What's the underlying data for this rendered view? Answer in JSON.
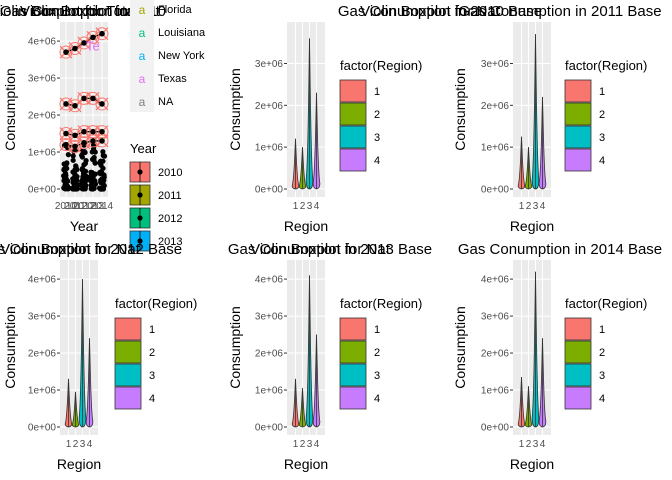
{
  "chart_data": [
    {
      "type": "scatter",
      "title": "Gas Conumption in 2010",
      "overlapping_titles": [
        "Violin Boxplot for Total",
        "Violin Boxplot for Nat"
      ],
      "xlabel": "Year",
      "ylabel": "Consumption",
      "x_ticks": [
        "2010",
        "2011",
        "2012",
        "2013",
        "2014"
      ],
      "y_ticks": [
        "0e+00",
        "1e+06",
        "2e+06",
        "3e+06",
        "4e+06"
      ],
      "ylim": [
        0,
        4300000
      ],
      "highlight_series": [
        {
          "name": "Texas",
          "x": [
            2010,
            2011,
            2012,
            2013,
            2014
          ],
          "y": [
            3700000,
            3800000,
            3950000,
            4100000,
            4200000
          ]
        },
        {
          "name": "Louisiana",
          "x": [
            2010,
            2011,
            2012,
            2013,
            2014
          ],
          "y": [
            2300000,
            2250000,
            2450000,
            2450000,
            2300000
          ]
        },
        {
          "name": "New York",
          "x": [
            2010,
            2011,
            2012,
            2013,
            2014
          ],
          "y": [
            1500000,
            1450000,
            1550000,
            1550000,
            1550000
          ]
        },
        {
          "name": "Florida",
          "x": [
            2010,
            2011,
            2012,
            2013,
            2014
          ],
          "y": [
            1200000,
            1150000,
            1250000,
            1300000,
            1300000
          ]
        }
      ],
      "bulk_points_range": [
        0,
        1300000
      ],
      "annotation": "Te",
      "legend_label": {
        "title": "",
        "entries": [
          {
            "glyph": "a",
            "label": "Florida",
            "color": "#a3a500"
          },
          {
            "glyph": "a",
            "label": "Louisiana",
            "color": "#00bf7d"
          },
          {
            "glyph": "a",
            "label": "New York",
            "color": "#00b0f6"
          },
          {
            "glyph": "a",
            "label": "Texas",
            "color": "#e76bf3"
          },
          {
            "glyph": "a",
            "label": "NA",
            "color": "#7f7f7f"
          }
        ]
      },
      "legend_year": {
        "title": "Year",
        "entries": [
          {
            "label": "2010",
            "color": "#f8766d"
          },
          {
            "label": "2011",
            "color": "#a3a500"
          },
          {
            "label": "2012",
            "color": "#00bf7d"
          },
          {
            "label": "2013",
            "color": "#00b0f6"
          }
        ]
      }
    },
    {
      "type": "violin",
      "title": "Gas Conumption in 2010 Base",
      "overlapping_titles": [
        "Violin Boxplot for Nat"
      ],
      "xlabel": "Region",
      "ylabel": "Consumption",
      "categories": [
        "1",
        "2",
        "3",
        "4"
      ],
      "y_ticks": [
        "0e+00",
        "1e+06",
        "2e+06",
        "3e+06"
      ],
      "ylim": [
        0,
        3800000
      ],
      "max": [
        1200000,
        1000000,
        3600000,
        2300000
      ],
      "legend": {
        "title": "factor(Region)",
        "entries": [
          "1",
          "2",
          "3",
          "4"
        ]
      }
    },
    {
      "type": "violin",
      "title": "Gas Conumption in 2011 Base",
      "overlapping_titles": [],
      "xlabel": "Region",
      "ylabel": "Consumption",
      "categories": [
        "1",
        "2",
        "3",
        "4"
      ],
      "y_ticks": [
        "0e+00",
        "1e+06",
        "2e+06",
        "3e+06"
      ],
      "ylim": [
        0,
        3800000
      ],
      "max": [
        1250000,
        1000000,
        3700000,
        2200000
      ],
      "legend": {
        "title": "factor(Region)",
        "entries": [
          "1",
          "2",
          "3",
          "4"
        ]
      }
    },
    {
      "type": "violin",
      "title": "Gas Conumption in 2012 Base",
      "overlapping_titles": [
        "Violin Boxplot for Nat"
      ],
      "xlabel": "Region",
      "ylabel": "Consumption",
      "categories": [
        "1",
        "2",
        "3",
        "4"
      ],
      "y_ticks": [
        "0e+00",
        "1e+06",
        "2e+06",
        "3e+06",
        "4e+06"
      ],
      "ylim": [
        0,
        4300000
      ],
      "max": [
        1300000,
        950000,
        4000000,
        2400000
      ],
      "legend": {
        "title": "factor(Region)",
        "entries": [
          "1",
          "2",
          "3",
          "4"
        ]
      }
    },
    {
      "type": "violin",
      "title": "Gas Conumption in 2013 Base",
      "overlapping_titles": [
        "Violin Boxplot for Nat"
      ],
      "xlabel": "Region",
      "ylabel": "Consumption",
      "categories": [
        "1",
        "2",
        "3",
        "4"
      ],
      "y_ticks": [
        "0e+00",
        "1e+06",
        "2e+06",
        "3e+06",
        "4e+06"
      ],
      "ylim": [
        0,
        4300000
      ],
      "max": [
        1300000,
        1050000,
        4100000,
        2500000
      ],
      "legend": {
        "title": "factor(Region)",
        "entries": [
          "1",
          "2",
          "3",
          "4"
        ]
      }
    },
    {
      "type": "violin",
      "title": "Gas Conumption in 2014 Base",
      "overlapping_titles": [],
      "xlabel": "Region",
      "ylabel": "Consumption",
      "categories": [
        "1",
        "2",
        "3",
        "4"
      ],
      "y_ticks": [
        "0e+00",
        "1e+06",
        "2e+06",
        "3e+06",
        "4e+06"
      ],
      "ylim": [
        0,
        4300000
      ],
      "max": [
        1350000,
        1100000,
        4200000,
        2400000
      ],
      "legend": {
        "title": "factor(Region)",
        "entries": [
          "1",
          "2",
          "3",
          "4"
        ]
      }
    }
  ],
  "palette": {
    "region": [
      "#f8766d",
      "#7cae00",
      "#00bfc4",
      "#c77cff"
    ],
    "panel_bg": "#ebebeb",
    "grid": "#ffffff",
    "highlight_ring": "#f8766d"
  }
}
